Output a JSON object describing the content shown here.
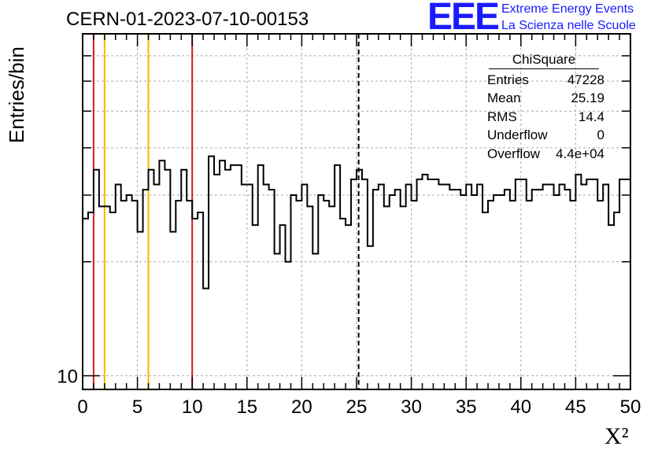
{
  "title": "CERN-01-2023-07-10-00153",
  "branding": {
    "logo": "EEE",
    "line1": "Extreme Energy Events",
    "line2": "La Scienza nelle Scuole",
    "color": "#1a1aff"
  },
  "stats_box": {
    "name": "ChiSquare",
    "rows": [
      {
        "label": "Entries",
        "value": "47228"
      },
      {
        "label": "Mean",
        "value": "25.19"
      },
      {
        "label": "RMS",
        "value": "14.4"
      },
      {
        "label": "Underflow",
        "value": "0"
      },
      {
        "label": "Overflow",
        "value": "4.4e+04"
      }
    ]
  },
  "chart_data": {
    "type": "histogram",
    "title": "CERN-01-2023-07-10-00153",
    "xlabel": "X²",
    "ylabel": "Entries/bin",
    "xlim": [
      0,
      50
    ],
    "ylim": [
      9.2,
      80
    ],
    "yscale": "log",
    "x_ticks": [
      0,
      5,
      10,
      15,
      20,
      25,
      30,
      35,
      40,
      45,
      50
    ],
    "y_tick_labels": [
      {
        "value": 10,
        "label": "10"
      }
    ],
    "grid": true,
    "bin_width": 0.5,
    "values": [
      26,
      27,
      35,
      28,
      28,
      27,
      32,
      29,
      30,
      29,
      24,
      31,
      35,
      32,
      37,
      35,
      24,
      29,
      35,
      29,
      26,
      27,
      17,
      38,
      34,
      37,
      35,
      36,
      36,
      32,
      32,
      25,
      36,
      32,
      31,
      21,
      25,
      20,
      30,
      29,
      32,
      28,
      21,
      30,
      29,
      28,
      36,
      26,
      25,
      33,
      35,
      33,
      22,
      31,
      32,
      28,
      30,
      31,
      28,
      32,
      29,
      33,
      34,
      33,
      33,
      32,
      32,
      31,
      31,
      30,
      32,
      30,
      32,
      27,
      29,
      30,
      30,
      31,
      29,
      33,
      33,
      29,
      31,
      31,
      32,
      32,
      30,
      32,
      31,
      29,
      34,
      32,
      33,
      33,
      29,
      32,
      25,
      27,
      33,
      33
    ],
    "vertical_lines": [
      {
        "x": 1,
        "color": "#d7191c",
        "style": "solid"
      },
      {
        "x": 2,
        "color": "#f5b800",
        "style": "solid"
      },
      {
        "x": 6,
        "color": "#f5b800",
        "style": "solid"
      },
      {
        "x": 10,
        "color": "#d7191c",
        "style": "solid"
      },
      {
        "x": 25.19,
        "color": "#000000",
        "style": "dashed"
      }
    ]
  }
}
